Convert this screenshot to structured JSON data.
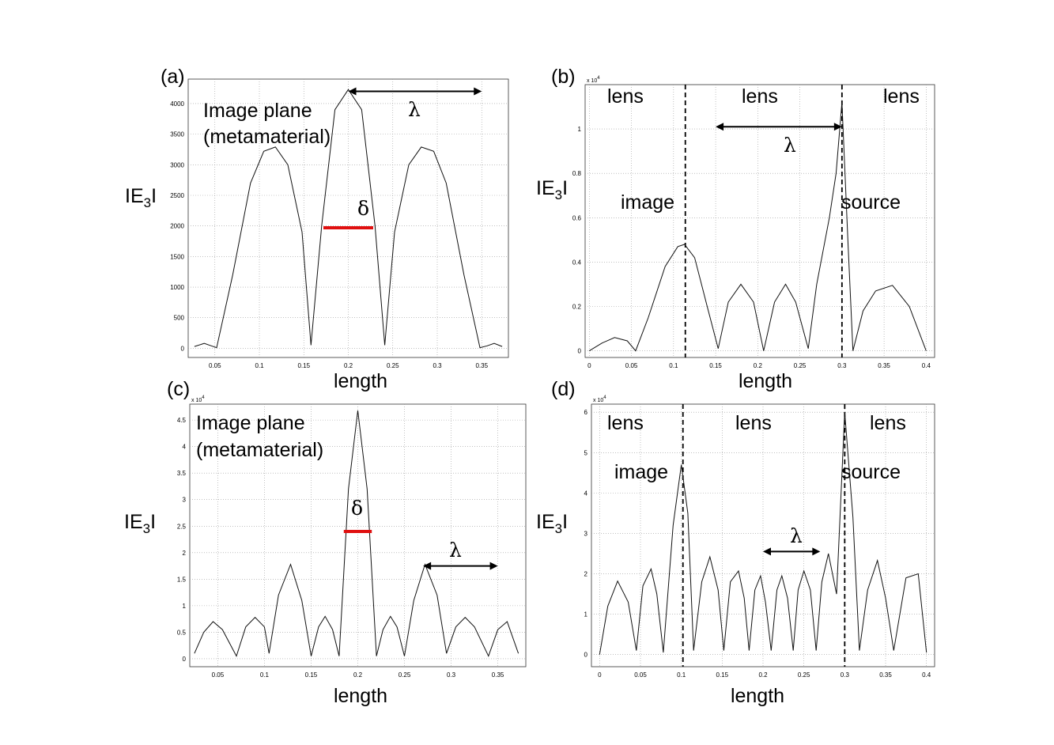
{
  "chart_data": [
    {
      "panel": "(a)",
      "type": "line",
      "xlabel": "length",
      "ylabel": [
        "IE",
        "3",
        "I"
      ],
      "exponent": "",
      "xlim": [
        0.02,
        0.38
      ],
      "ylim": [
        -150,
        4400
      ],
      "xticks": [
        0.05,
        0.1,
        0.15,
        0.2,
        0.25,
        0.3,
        0.35
      ],
      "xticklabels": [
        "0.05",
        "0.1",
        "0.15",
        "0.2",
        "0.25",
        "0.3",
        "0.35"
      ],
      "yticks": [
        0,
        500,
        1000,
        1500,
        2000,
        2500,
        3000,
        3500,
        4000
      ],
      "yticklabels": [
        "0",
        "500",
        "1000",
        "1500",
        "2000",
        "2500",
        "3000",
        "3500",
        "4000"
      ],
      "grid": true,
      "x": [
        0.027,
        0.038,
        0.046,
        0.052,
        0.07,
        0.09,
        0.105,
        0.118,
        0.132,
        0.148,
        0.158,
        0.17,
        0.185,
        0.2,
        0.215,
        0.23,
        0.241,
        0.252,
        0.268,
        0.282,
        0.296,
        0.31,
        0.33,
        0.348,
        0.356,
        0.364,
        0.373
      ],
      "values": [
        30,
        80,
        40,
        10,
        1200,
        2700,
        3220,
        3290,
        3000,
        1900,
        50,
        2000,
        3900,
        4230,
        3900,
        2000,
        50,
        1900,
        3000,
        3290,
        3220,
        2700,
        1200,
        10,
        40,
        80,
        30
      ],
      "dashed_lines": [],
      "arrow": {
        "label": "λ",
        "x0": 0.2,
        "x1": 0.35,
        "y": 4200
      },
      "delta": {
        "label": "δ",
        "x0": 0.172,
        "x1": 0.228,
        "y": 1970
      },
      "annotations": [
        "Image plane",
        "(metamaterial)"
      ]
    },
    {
      "panel": "(b)",
      "type": "line",
      "xlabel": "length",
      "ylabel": [
        "IE",
        "3",
        "I"
      ],
      "exponent": "x 10",
      "exponent_power": "4",
      "xlim": [
        -0.005,
        0.41
      ],
      "ylim": [
        -0.03,
        1.2
      ],
      "xticks": [
        0,
        0.05,
        0.1,
        0.15,
        0.2,
        0.25,
        0.3,
        0.35,
        0.4
      ],
      "xticklabels": [
        "0",
        "0.05",
        "0.1",
        "0.15",
        "0.2",
        "0.25",
        "0.3",
        "0.35",
        "0.4"
      ],
      "yticks": [
        0,
        0.2,
        0.4,
        0.6,
        0.8,
        1
      ],
      "yticklabels": [
        "0",
        "0.2",
        "0.4",
        "0.6",
        "0.8",
        "1"
      ],
      "grid": true,
      "x": [
        0,
        0.015,
        0.03,
        0.045,
        0.055,
        0.07,
        0.09,
        0.105,
        0.113,
        0.125,
        0.14,
        0.153,
        0.165,
        0.18,
        0.195,
        0.207,
        0.22,
        0.233,
        0.245,
        0.26,
        0.27,
        0.285,
        0.293,
        0.3,
        0.307,
        0.313,
        0.325,
        0.34,
        0.36,
        0.38,
        0.4
      ],
      "values": [
        0,
        0.035,
        0.06,
        0.045,
        0,
        0.15,
        0.38,
        0.47,
        0.48,
        0.42,
        0.2,
        0.01,
        0.22,
        0.3,
        0.22,
        0,
        0.22,
        0.3,
        0.22,
        0.01,
        0.3,
        0.6,
        0.8,
        1.12,
        0.5,
        0,
        0.18,
        0.27,
        0.295,
        0.2,
        0
      ],
      "dashed_lines": [
        0.114,
        0.3
      ],
      "arrow": {
        "label": "λ",
        "x0": 0.15,
        "x1": 0.3,
        "y": 1.01
      },
      "annotations": [
        "lens",
        "lens",
        "lens",
        "image",
        "source"
      ]
    },
    {
      "panel": "(c)",
      "type": "line",
      "xlabel": "length",
      "ylabel": [
        "IE",
        "3",
        "I"
      ],
      "exponent": "x 10",
      "exponent_power": "4",
      "xlim": [
        0.02,
        0.38
      ],
      "ylim": [
        -0.15,
        4.8
      ],
      "xticks": [
        0.05,
        0.1,
        0.15,
        0.2,
        0.25,
        0.3,
        0.35
      ],
      "xticklabels": [
        "0.05",
        "0.1",
        "0.15",
        "0.2",
        "0.25",
        "0.3",
        "0.35"
      ],
      "yticks": [
        0,
        0.5,
        1,
        1.5,
        2,
        2.5,
        3,
        3.5,
        4,
        4.5
      ],
      "yticklabels": [
        "0",
        "0.5",
        "1",
        "1.5",
        "2",
        "2.5",
        "3",
        "3.5",
        "4",
        "4.5"
      ],
      "grid": true,
      "x": [
        0.025,
        0.035,
        0.045,
        0.055,
        0.07,
        0.08,
        0.09,
        0.1,
        0.105,
        0.115,
        0.128,
        0.14,
        0.15,
        0.158,
        0.165,
        0.173,
        0.18,
        0.19,
        0.2,
        0.21,
        0.22,
        0.227,
        0.235,
        0.242,
        0.25,
        0.26,
        0.272,
        0.285,
        0.295,
        0.305,
        0.315,
        0.325,
        0.34,
        0.35,
        0.36,
        0.372
      ],
      "values": [
        0.1,
        0.5,
        0.7,
        0.55,
        0.05,
        0.6,
        0.78,
        0.6,
        0.1,
        1.2,
        1.78,
        1.1,
        0.05,
        0.6,
        0.8,
        0.55,
        0.05,
        3.2,
        4.68,
        3.2,
        0.05,
        0.55,
        0.8,
        0.6,
        0.05,
        1.1,
        1.78,
        1.2,
        0.1,
        0.6,
        0.78,
        0.6,
        0.05,
        0.55,
        0.7,
        0.1
      ],
      "dashed_lines": [],
      "arrow": {
        "label": "λ",
        "x0": 0.27,
        "x1": 0.35,
        "y": 1.75
      },
      "delta": {
        "label": "δ",
        "x0": 0.185,
        "x1": 0.215,
        "y": 2.4
      },
      "annotations": [
        "Image plane",
        "(metamaterial)"
      ]
    },
    {
      "panel": "(d)",
      "type": "line",
      "xlabel": "length",
      "ylabel": [
        "IE",
        "3",
        "I"
      ],
      "exponent": "x 10",
      "exponent_power": "4",
      "xlim": [
        -0.01,
        0.41
      ],
      "ylim": [
        -0.3,
        6.2
      ],
      "xticks": [
        0,
        0.05,
        0.1,
        0.15,
        0.2,
        0.25,
        0.3,
        0.35,
        0.4
      ],
      "xticklabels": [
        "0",
        "0.05",
        "0.1",
        "0.15",
        "0.2",
        "0.25",
        "0.3",
        "0.35",
        "0.4"
      ],
      "yticks": [
        0,
        1,
        2,
        3,
        4,
        5,
        6
      ],
      "yticklabels": [
        "0",
        "1",
        "2",
        "3",
        "4",
        "5",
        "6"
      ],
      "grid": true,
      "x": [
        0,
        0.01,
        0.022,
        0.035,
        0.045,
        0.053,
        0.063,
        0.07,
        0.078,
        0.09,
        0.1,
        0.108,
        0.115,
        0.125,
        0.135,
        0.145,
        0.152,
        0.16,
        0.17,
        0.177,
        0.183,
        0.19,
        0.197,
        0.203,
        0.21,
        0.217,
        0.223,
        0.23,
        0.237,
        0.243,
        0.25,
        0.258,
        0.265,
        0.272,
        0.28,
        0.29,
        0.3,
        0.31,
        0.318,
        0.328,
        0.34,
        0.35,
        0.36,
        0.375,
        0.39,
        0.4
      ],
      "values": [
        0,
        1.2,
        1.82,
        1.3,
        0.1,
        1.7,
        2.12,
        1.5,
        0.05,
        3.2,
        4.7,
        3.5,
        0.1,
        1.8,
        2.42,
        1.6,
        0.1,
        1.8,
        2.07,
        1.4,
        0.1,
        1.6,
        1.95,
        1.3,
        0.1,
        1.6,
        1.95,
        1.4,
        0.1,
        1.6,
        2.07,
        1.6,
        0.1,
        1.8,
        2.5,
        1.5,
        6.0,
        3.4,
        0.1,
        1.6,
        2.33,
        1.4,
        0.1,
        1.9,
        2.0,
        0.05
      ],
      "dashed_lines": [
        0.102,
        0.3
      ],
      "arrow": {
        "label": "λ",
        "x0": 0.2,
        "x1": 0.27,
        "y": 2.55
      },
      "annotations": [
        "lens",
        "lens",
        "lens",
        "image",
        "source"
      ]
    }
  ]
}
